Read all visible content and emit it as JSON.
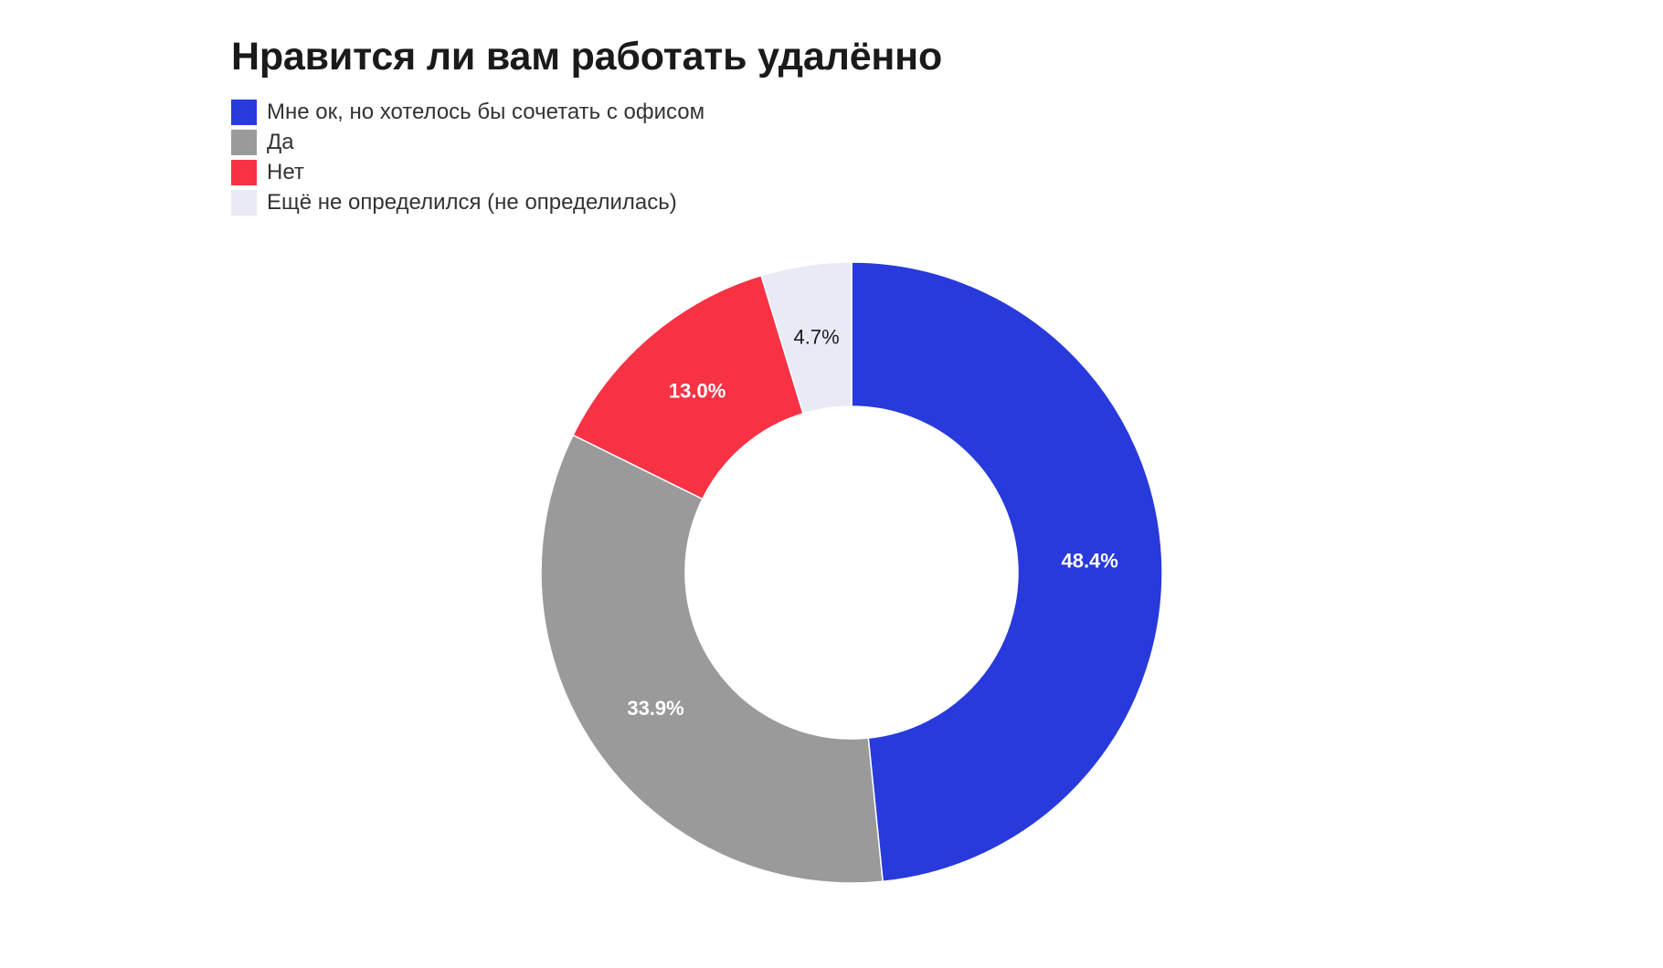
{
  "chart_data": {
    "type": "pie",
    "donut": true,
    "title": "Нравится ли вам работать удалённо",
    "legend_position": "top-left",
    "slices": [
      {
        "label": "Мне ок, но хотелось бы сочетать с офисом",
        "value": 48.4,
        "display": "48.4%",
        "color": "#283adb",
        "label_color": "#ffffff",
        "label_bold": true
      },
      {
        "label": "Да",
        "value": 33.9,
        "display": "33.9%",
        "color": "#9a9a9a",
        "label_color": "#ffffff",
        "label_bold": true
      },
      {
        "label": "Нет",
        "value": 13.0,
        "display": "13.0%",
        "color": "#f83245",
        "label_color": "#ffffff",
        "label_bold": true
      },
      {
        "label": "Ещё не определился (не определилась)",
        "value": 4.7,
        "display": "4.7%",
        "color": "#e8eaf6",
        "label_color": "#1a1a1a",
        "label_bold": false
      }
    ]
  }
}
